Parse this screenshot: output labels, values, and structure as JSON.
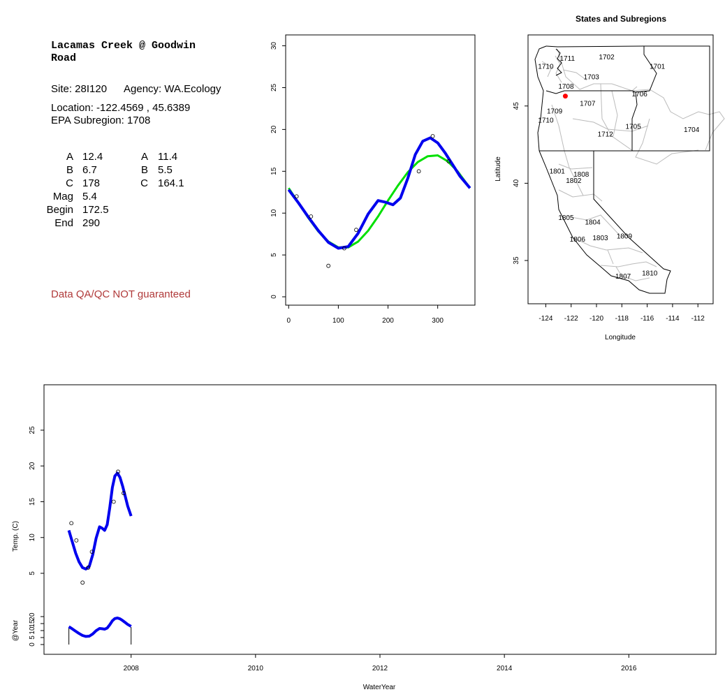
{
  "site_info": {
    "title_line1": "Lacamas Creek @ Goodwin",
    "title_line2": "Road",
    "site": "Site: 28I120",
    "agency": "Agency: WA.Ecology",
    "location": "Location: -122.4569 , 45.6389",
    "subregion": "EPA Subregion: 1708",
    "params_left": [
      {
        "label": "A",
        "value": "12.4"
      },
      {
        "label": "B",
        "value": "6.7"
      },
      {
        "label": "C",
        "value": "178"
      },
      {
        "label": "Mag",
        "value": "5.4"
      },
      {
        "label": "Begin",
        "value": "172.5"
      },
      {
        "label": "End",
        "value": "290"
      }
    ],
    "params_right": [
      {
        "label": "A",
        "value": "11.4"
      },
      {
        "label": "B",
        "value": "5.5"
      },
      {
        "label": "C",
        "value": "164.1"
      }
    ],
    "disclaimer": "Data QA/QC NOT guaranteed"
  },
  "colors": {
    "fit_blue": "#0000ee",
    "fit_green": "#00e000",
    "site_marker": "#ff0000",
    "boundary_gray": "#bbbbbb",
    "disclaimer": "#b03a3a"
  },
  "chart_data": [
    {
      "type": "scatter",
      "title": "",
      "xlabel": "",
      "ylabel": "",
      "xlim": [
        0,
        365
      ],
      "ylim": [
        0,
        30
      ],
      "x_ticks": [
        "0",
        "100",
        "200",
        "300"
      ],
      "y_ticks": [
        "0",
        "5",
        "10",
        "15",
        "20",
        "25",
        "30"
      ],
      "points": [
        {
          "x": 16,
          "y": 12.0
        },
        {
          "x": 45,
          "y": 9.6
        },
        {
          "x": 80,
          "y": 3.7
        },
        {
          "x": 112,
          "y": 5.8
        },
        {
          "x": 136,
          "y": 8.0
        },
        {
          "x": 262,
          "y": 15.0
        },
        {
          "x": 290,
          "y": 19.2
        },
        {
          "x": 322,
          "y": 16.2
        }
      ],
      "series": [
        {
          "color": "blue",
          "x": [
            0,
            20,
            40,
            60,
            80,
            100,
            120,
            140,
            160,
            180,
            195,
            210,
            225,
            240,
            255,
            270,
            285,
            300,
            315,
            330,
            345,
            365
          ],
          "y": [
            12.8,
            11.2,
            9.5,
            7.9,
            6.5,
            5.8,
            6.0,
            7.6,
            9.9,
            11.5,
            11.3,
            11.0,
            11.8,
            14.2,
            17.0,
            18.6,
            19.0,
            18.4,
            17.2,
            15.8,
            14.4,
            13.0
          ]
        },
        {
          "color": "green",
          "x": [
            0,
            20,
            40,
            60,
            80,
            100,
            120,
            140,
            160,
            180,
            200,
            220,
            240,
            260,
            280,
            300,
            320,
            340,
            365
          ],
          "y": [
            13.0,
            11.2,
            9.4,
            7.8,
            6.6,
            5.9,
            5.9,
            6.6,
            7.9,
            9.6,
            11.5,
            13.3,
            14.9,
            16.1,
            16.8,
            16.9,
            16.2,
            15.0,
            13.0
          ]
        }
      ]
    },
    {
      "type": "map",
      "title": "States and Subregions",
      "xlabel": "Longitude",
      "ylabel": "Latitude",
      "xlim": [
        -125.4,
        -110.8
      ],
      "ylim": [
        32.2,
        49.6
      ],
      "x_ticks": [
        "-124",
        "-122",
        "-120",
        "-118",
        "-116",
        "-114",
        "-112"
      ],
      "y_ticks": [
        "35",
        "40",
        "45"
      ],
      "site": {
        "lon": -122.4569,
        "lat": 45.6389
      },
      "regions": [
        {
          "label": "1711",
          "lon": -122.3,
          "lat": 48.1
        },
        {
          "label": "1702",
          "lon": -119.2,
          "lat": 48.2
        },
        {
          "label": "1701",
          "lon": -115.2,
          "lat": 47.6
        },
        {
          "label": "1710",
          "lon": -124.0,
          "lat": 47.6
        },
        {
          "label": "1703",
          "lon": -120.4,
          "lat": 46.9
        },
        {
          "label": "1708",
          "lon": -122.4,
          "lat": 46.3
        },
        {
          "label": "1706",
          "lon": -116.6,
          "lat": 45.8
        },
        {
          "label": "1707",
          "lon": -120.7,
          "lat": 45.2
        },
        {
          "label": "1709",
          "lon": -123.3,
          "lat": 44.7
        },
        {
          "label": "1710",
          "lon": -124.0,
          "lat": 44.1
        },
        {
          "label": "1705",
          "lon": -117.1,
          "lat": 43.7
        },
        {
          "label": "1704",
          "lon": -112.5,
          "lat": 43.5
        },
        {
          "label": "1712",
          "lon": -119.3,
          "lat": 43.2
        },
        {
          "label": "1801",
          "lon": -123.1,
          "lat": 40.8
        },
        {
          "label": "1808",
          "lon": -121.2,
          "lat": 40.6
        },
        {
          "label": "1802",
          "lon": -121.8,
          "lat": 40.2
        },
        {
          "label": "1805",
          "lon": -122.4,
          "lat": 37.8
        },
        {
          "label": "1804",
          "lon": -120.3,
          "lat": 37.5
        },
        {
          "label": "1806",
          "lon": -121.5,
          "lat": 36.4
        },
        {
          "label": "1803",
          "lon": -119.7,
          "lat": 36.5
        },
        {
          "label": "1809",
          "lon": -117.8,
          "lat": 36.6
        },
        {
          "label": "1807",
          "lon": -117.9,
          "lat": 34.0
        },
        {
          "label": "1810",
          "lon": -115.8,
          "lat": 34.2
        }
      ]
    },
    {
      "type": "line",
      "title": "",
      "xlabel": "WaterYear",
      "ylabel": "Temp. (C)",
      "xlim": [
        2006.6,
        2017.4
      ],
      "ylim": [
        -2.5,
        30
      ],
      "x_ticks": [
        "2008",
        "2010",
        "2012",
        "2014",
        "2016"
      ],
      "y_ticks": [
        "5",
        "10",
        "15",
        "20",
        "25"
      ],
      "points": [
        {
          "x": 2007.04,
          "y": 12.0
        },
        {
          "x": 2007.12,
          "y": 9.6
        },
        {
          "x": 2007.22,
          "y": 3.7
        },
        {
          "x": 2007.31,
          "y": 5.8
        },
        {
          "x": 2007.37,
          "y": 8.0
        },
        {
          "x": 2007.72,
          "y": 15.0
        },
        {
          "x": 2007.79,
          "y": 19.2
        },
        {
          "x": 2007.88,
          "y": 16.2
        }
      ],
      "series": [
        {
          "color": "blue",
          "x": [
            2007.0,
            2007.055,
            2007.11,
            2007.164,
            2007.219,
            2007.274,
            2007.329,
            2007.384,
            2007.438,
            2007.493,
            2007.534,
            2007.575,
            2007.616,
            2007.658,
            2007.699,
            2007.74,
            2007.781,
            2007.822,
            2007.863,
            2007.904,
            2007.945,
            2008.0
          ],
          "y": [
            11.0,
            9.4,
            7.8,
            6.6,
            5.8,
            5.6,
            6.0,
            7.6,
            9.9,
            11.5,
            11.3,
            11.0,
            11.8,
            14.2,
            17.0,
            18.6,
            19.0,
            18.4,
            17.2,
            15.8,
            14.4,
            13.0
          ]
        }
      ]
    },
    {
      "type": "line",
      "title": "",
      "xlabel": "",
      "ylabel": "@Year",
      "xlim": [
        2006.6,
        2017.4
      ],
      "ylim": [
        -2,
        25
      ],
      "y_ticks": [
        "0",
        "5",
        "10",
        "15",
        "20"
      ],
      "segments": [
        2007.0,
        2008.0
      ],
      "series": [
        {
          "color": "blue",
          "x": [
            2007.0,
            2007.055,
            2007.11,
            2007.164,
            2007.219,
            2007.274,
            2007.329,
            2007.384,
            2007.438,
            2007.493,
            2007.534,
            2007.575,
            2007.616,
            2007.658,
            2007.699,
            2007.74,
            2007.781,
            2007.822,
            2007.863,
            2007.904,
            2007.945,
            2008.0
          ],
          "y": [
            12.8,
            11.2,
            9.5,
            7.9,
            6.5,
            5.8,
            6.0,
            7.6,
            9.9,
            11.5,
            11.3,
            11.0,
            11.8,
            14.2,
            17.0,
            18.6,
            19.0,
            18.4,
            17.2,
            15.8,
            14.4,
            13.0
          ]
        }
      ]
    }
  ]
}
